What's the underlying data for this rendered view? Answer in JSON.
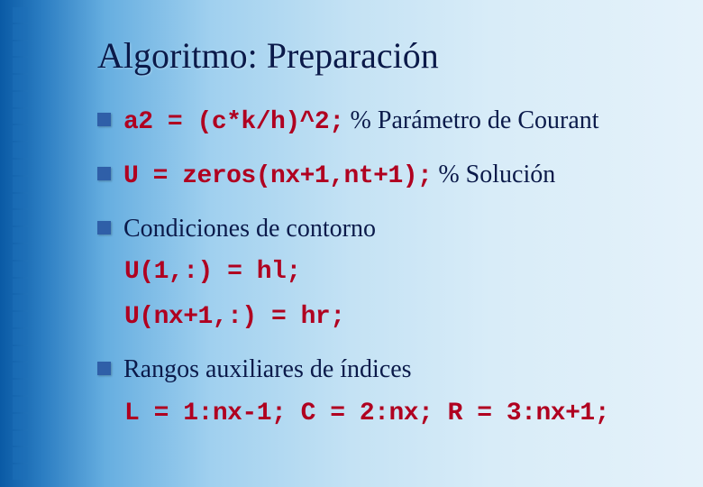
{
  "slide": {
    "title": "Algoritmo: Preparación",
    "bullets": [
      {
        "code": "a2 = (c*k/h)^2;",
        "comment": " % Parámetro de Courant"
      },
      {
        "code": "U = zeros(nx+1,nt+1);",
        "spacer": "      ",
        "comment": "% Solución"
      },
      {
        "text": "Condiciones de contorno",
        "subcode": [
          "U(1,:) = hl;",
          "U(nx+1,:) = hr;"
        ]
      },
      {
        "text": "Rangos auxiliares de índices",
        "subcode_inline": "L = 1:nx-1;  C = 2:nx;  R = 3:nx+1;"
      }
    ],
    "decor": {
      "square_count": 28,
      "square_color": "#1e6fb8"
    }
  }
}
